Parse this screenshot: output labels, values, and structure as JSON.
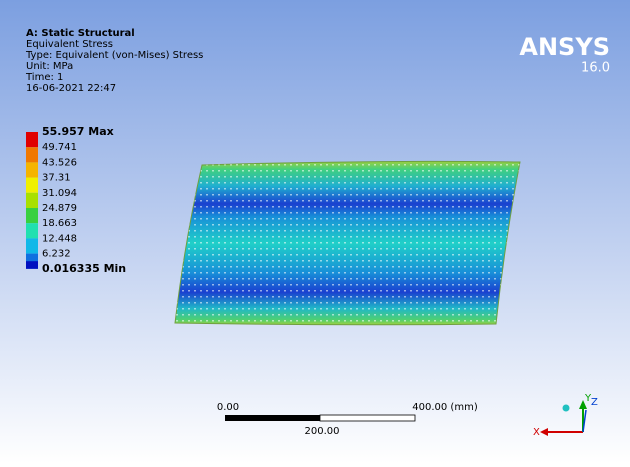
{
  "header": {
    "lines": [
      "A: Static Structural",
      "Equivalent Stress",
      "Type: Equivalent (von-Mises) Stress",
      "Unit: MPa",
      "Time: 1",
      "16-06-2021 22:47"
    ]
  },
  "logo": {
    "name": "ANSYS",
    "version": "16.0"
  },
  "legend": {
    "entries": [
      {
        "label": "55.957 Max",
        "color": "#e00000"
      },
      {
        "label": "49.741",
        "color": "#f07800"
      },
      {
        "label": "43.526",
        "color": "#f5b400"
      },
      {
        "label": "37.31",
        "color": "#f0f000"
      },
      {
        "label": "31.094",
        "color": "#a8e000"
      },
      {
        "label": "24.879",
        "color": "#38d040"
      },
      {
        "label": "18.663",
        "color": "#20e0b0"
      },
      {
        "label": "12.448",
        "color": "#10b8e8"
      },
      {
        "label": "6.232",
        "color": "#1070e0"
      },
      {
        "label": "0.016335 Min",
        "color": "#0010c0"
      }
    ]
  },
  "scale_bar": {
    "left": "0.00",
    "right": "400.00 (mm)",
    "middle": "200.00"
  },
  "triad": {
    "x": "X",
    "y": "Y",
    "z": "Z"
  }
}
